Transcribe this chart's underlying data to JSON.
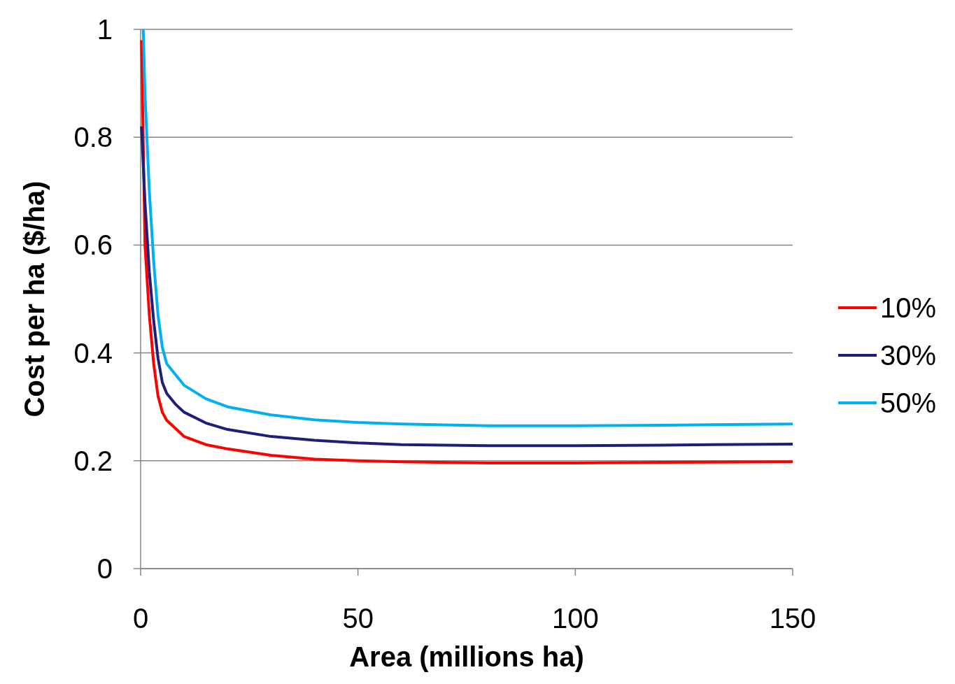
{
  "chart_data": {
    "type": "line",
    "xlabel": "Area (millions ha)",
    "ylabel": "Cost per ha ($/ha)",
    "xlim": [
      0,
      150
    ],
    "xticks": [
      0,
      50,
      100,
      150
    ],
    "ylim": [
      0,
      1
    ],
    "yticks": [
      0,
      0.2,
      0.4,
      0.6,
      0.8,
      1
    ],
    "grid": "y",
    "legend": "right",
    "marker": "none",
    "line_style": "solid",
    "x": [
      0.2,
      1,
      2,
      3,
      4,
      5,
      6,
      8,
      10,
      15,
      20,
      30,
      40,
      50,
      60,
      80,
      100,
      120,
      150
    ],
    "series": [
      {
        "name": "10%",
        "color": "#ff0000",
        "values": [
          0.98,
          0.6,
          0.47,
          0.38,
          0.32,
          0.29,
          0.275,
          0.26,
          0.245,
          0.23,
          0.222,
          0.21,
          0.203,
          0.2,
          0.198,
          0.196,
          0.196,
          0.197,
          0.198
        ]
      },
      {
        "name": "30%",
        "color": "#1f1f7a",
        "values": [
          0.82,
          0.68,
          0.55,
          0.46,
          0.39,
          0.345,
          0.325,
          0.305,
          0.29,
          0.27,
          0.258,
          0.245,
          0.238,
          0.233,
          0.23,
          0.228,
          0.228,
          0.229,
          0.231
        ]
      },
      {
        "name": "50%",
        "color": "#00b0f0",
        "x": [
          0.6,
          1,
          2,
          3,
          4,
          5,
          6,
          8,
          10,
          15,
          20,
          30,
          40,
          50,
          60,
          80,
          100,
          120,
          150
        ],
        "values": [
          1.0,
          0.88,
          0.7,
          0.57,
          0.47,
          0.41,
          0.38,
          0.36,
          0.34,
          0.315,
          0.3,
          0.285,
          0.276,
          0.271,
          0.268,
          0.265,
          0.265,
          0.266,
          0.268
        ]
      }
    ]
  }
}
